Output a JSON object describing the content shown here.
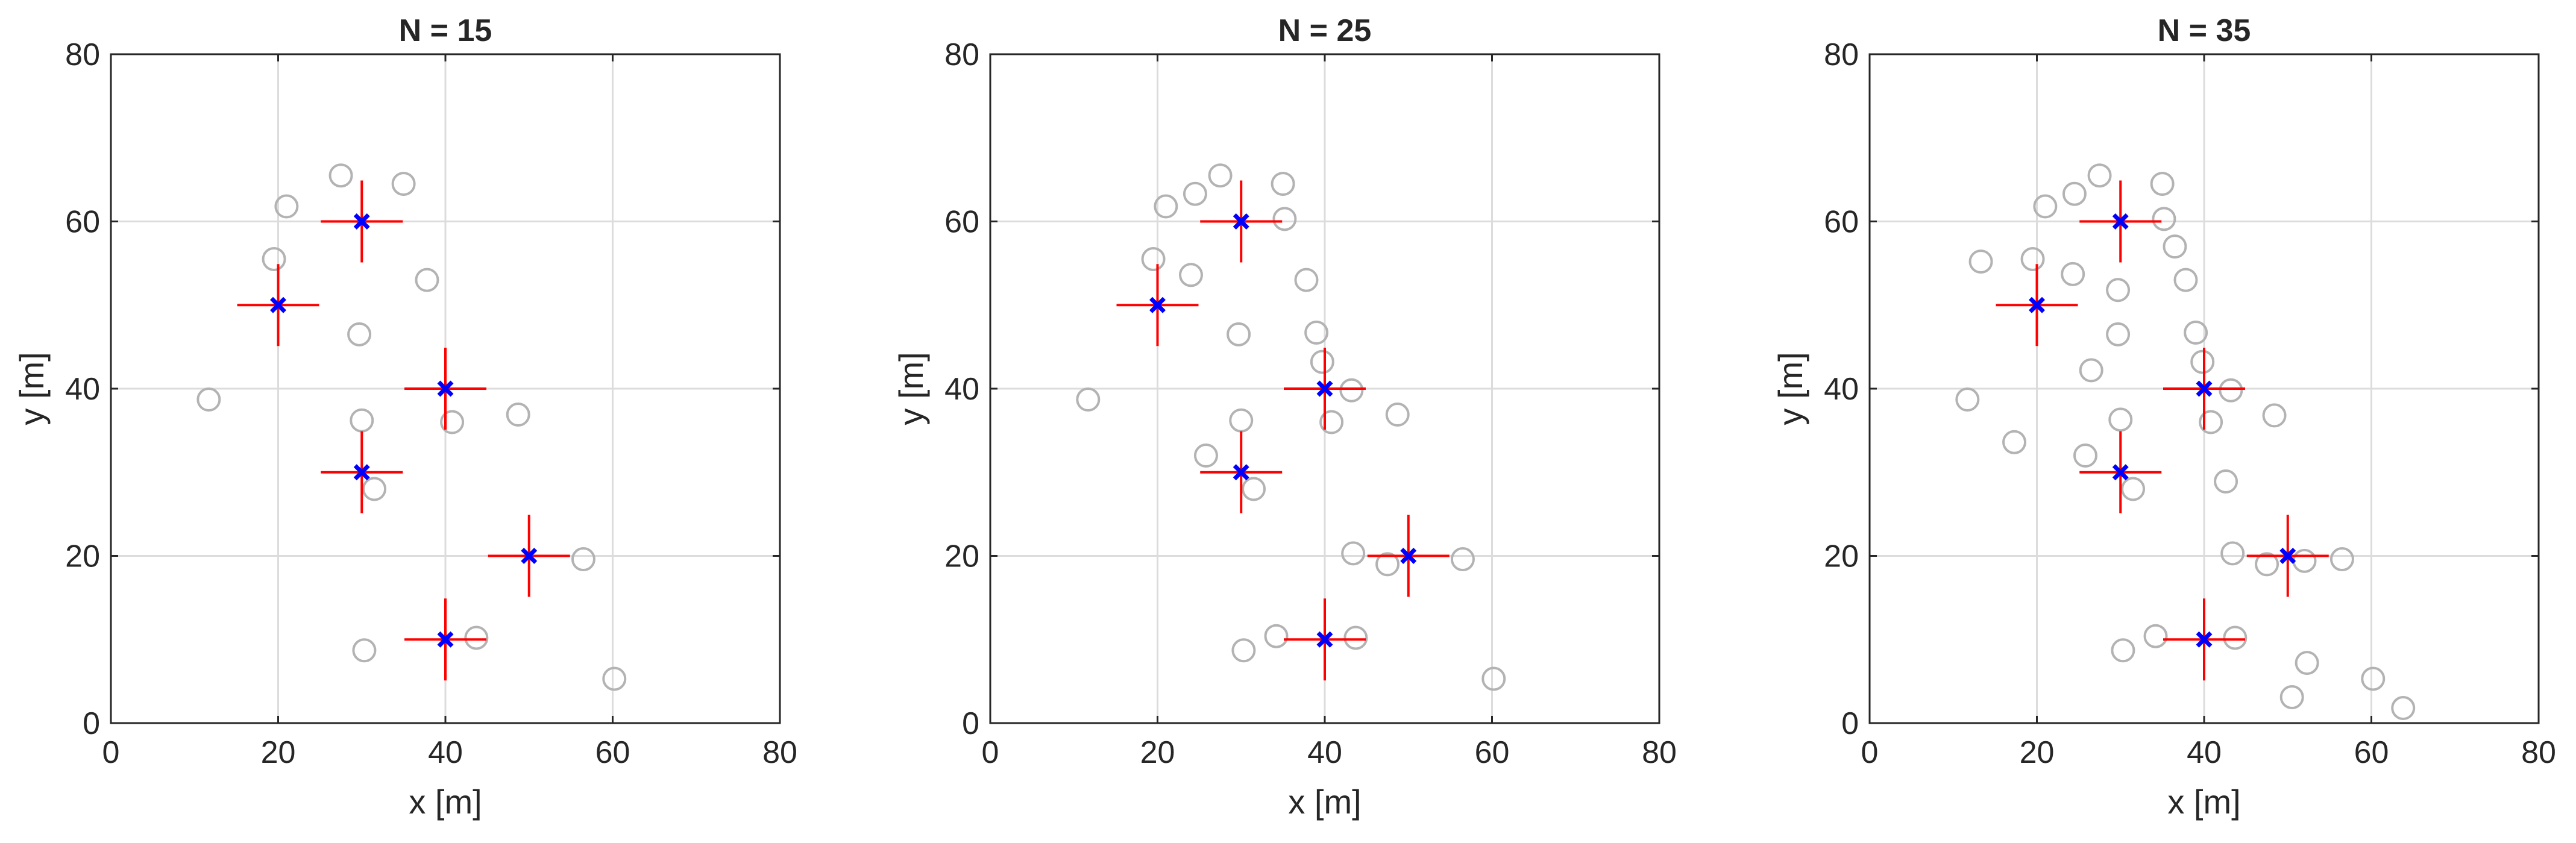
{
  "chart_data": [
    {
      "type": "scatter",
      "title": "N = 15",
      "xlabel": "x [m]",
      "ylabel": "y [m]",
      "xlim": [
        0,
        80
      ],
      "ylim": [
        0,
        80
      ],
      "xticks": [
        "0",
        "20",
        "40",
        "60",
        "80"
      ],
      "yticks": [
        "0",
        "20",
        "40",
        "60",
        "80"
      ],
      "grid": true,
      "colors": {
        "anchors": "#0000ff",
        "crosshair": "#ff0000",
        "nodes": "#b3b3b3"
      },
      "anchors": [
        [
          30,
          60
        ],
        [
          20,
          50
        ],
        [
          40,
          40
        ],
        [
          30,
          30
        ],
        [
          50,
          20
        ],
        [
          40,
          10
        ]
      ],
      "points": [
        [
          27.5,
          65.5
        ],
        [
          35,
          64.5
        ],
        [
          21,
          61.8
        ],
        [
          19.5,
          55.5
        ],
        [
          37.8,
          53
        ],
        [
          29.7,
          46.5
        ],
        [
          11.7,
          38.7
        ],
        [
          30,
          36.2
        ],
        [
          40.8,
          36
        ],
        [
          48.7,
          36.9
        ],
        [
          31.5,
          28
        ],
        [
          56.5,
          19.6
        ],
        [
          43.7,
          10.2
        ],
        [
          30.3,
          8.7
        ],
        [
          60.2,
          5.3
        ]
      ]
    },
    {
      "type": "scatter",
      "title": "N = 25",
      "xlabel": "x [m]",
      "ylabel": "y [m]",
      "xlim": [
        0,
        80
      ],
      "ylim": [
        0,
        80
      ],
      "xticks": [
        "0",
        "20",
        "40",
        "60",
        "80"
      ],
      "yticks": [
        "0",
        "20",
        "40",
        "60",
        "80"
      ],
      "grid": true,
      "colors": {
        "anchors": "#0000ff",
        "crosshair": "#ff0000",
        "nodes": "#b3b3b3"
      },
      "anchors": [
        [
          30,
          60
        ],
        [
          20,
          50
        ],
        [
          40,
          40
        ],
        [
          30,
          30
        ],
        [
          50,
          20
        ],
        [
          40,
          10
        ]
      ],
      "points": [
        [
          27.5,
          65.5
        ],
        [
          35,
          64.5
        ],
        [
          24.5,
          63.3
        ],
        [
          21,
          61.8
        ],
        [
          35.2,
          60.3
        ],
        [
          19.5,
          55.5
        ],
        [
          24,
          53.6
        ],
        [
          37.8,
          53
        ],
        [
          29.7,
          46.5
        ],
        [
          39,
          46.7
        ],
        [
          39.7,
          43.2
        ],
        [
          11.7,
          38.7
        ],
        [
          43.2,
          39.8
        ],
        [
          30,
          36.2
        ],
        [
          40.8,
          36
        ],
        [
          48.7,
          36.9
        ],
        [
          25.8,
          32
        ],
        [
          31.5,
          28
        ],
        [
          43.4,
          20.3
        ],
        [
          47.5,
          19
        ],
        [
          56.5,
          19.6
        ],
        [
          34.2,
          10.4
        ],
        [
          43.7,
          10.2
        ],
        [
          30.3,
          8.7
        ],
        [
          60.2,
          5.3
        ]
      ]
    },
    {
      "type": "scatter",
      "title": "N = 35",
      "xlabel": "x [m]",
      "ylabel": "y [m]",
      "xlim": [
        0,
        80
      ],
      "ylim": [
        0,
        80
      ],
      "xticks": [
        "0",
        "20",
        "40",
        "60",
        "80"
      ],
      "yticks": [
        "0",
        "20",
        "40",
        "60",
        "80"
      ],
      "grid": true,
      "colors": {
        "anchors": "#0000ff",
        "crosshair": "#ff0000",
        "nodes": "#b3b3b3"
      },
      "anchors": [
        [
          30,
          60
        ],
        [
          20,
          50
        ],
        [
          40,
          40
        ],
        [
          30,
          30
        ],
        [
          50,
          20
        ],
        [
          40,
          10
        ]
      ],
      "points": [
        [
          27.5,
          65.5
        ],
        [
          35,
          64.5
        ],
        [
          24.5,
          63.3
        ],
        [
          21,
          61.8
        ],
        [
          35.2,
          60.3
        ],
        [
          36.5,
          57
        ],
        [
          13.3,
          55.2
        ],
        [
          19.5,
          55.5
        ],
        [
          24.3,
          53.7
        ],
        [
          37.8,
          53
        ],
        [
          29.7,
          51.8
        ],
        [
          39,
          46.7
        ],
        [
          29.7,
          46.5
        ],
        [
          39.8,
          43.2
        ],
        [
          26.5,
          42.2
        ],
        [
          11.7,
          38.7
        ],
        [
          43.2,
          39.8
        ],
        [
          30,
          36.3
        ],
        [
          40.8,
          36
        ],
        [
          48.4,
          36.8
        ],
        [
          17.3,
          33.6
        ],
        [
          25.8,
          32
        ],
        [
          31.5,
          28
        ],
        [
          42.6,
          28.9
        ],
        [
          43.4,
          20.3
        ],
        [
          47.5,
          19
        ],
        [
          52,
          19.4
        ],
        [
          56.5,
          19.6
        ],
        [
          34.2,
          10.4
        ],
        [
          43.7,
          10.2
        ],
        [
          30.3,
          8.7
        ],
        [
          52.3,
          7.2
        ],
        [
          60.2,
          5.3
        ],
        [
          50.5,
          3.1
        ],
        [
          63.8,
          1.8
        ]
      ]
    }
  ]
}
